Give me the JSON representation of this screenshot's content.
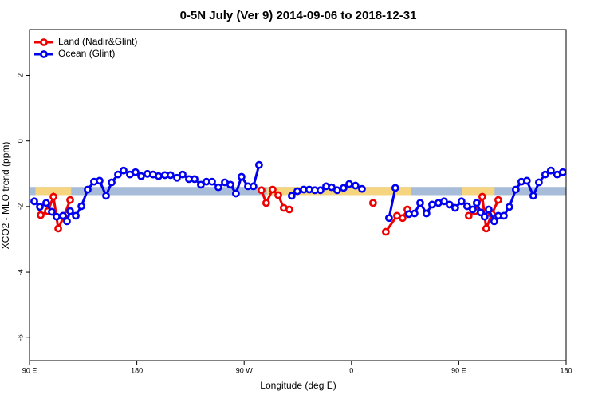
{
  "chart_data": {
    "type": "line",
    "title": "0-5N July (Ver 9)   2014-09-06 to 2018-12-31",
    "x_label": "Longitude (deg E)",
    "y_label": "XCO2 - MLO trend (ppm)",
    "xlim": [
      90,
      540
    ],
    "ylim": [
      -6.7,
      3.4
    ],
    "xticks": [
      {
        "value": 90,
        "label": "90 E"
      },
      180,
      {
        "value": 270,
        "label": "90 W"
      },
      {
        "value": 360,
        "label": "0"
      },
      {
        "value": 450,
        "label": "90 E"
      },
      {
        "value": 540,
        "label": "180"
      }
    ],
    "yticks": [
      2,
      0,
      -2,
      -4,
      -6
    ],
    "legend": "top-left",
    "reference_band": {
      "ylim": [
        -1.65,
        -1.4
      ],
      "color": "#a7bcd9",
      "highlight_color": "#f6d581",
      "highlight_ranges": [
        [
          95,
          125
        ],
        [
          289,
          410
        ],
        [
          453,
          480
        ]
      ]
    },
    "series": [
      {
        "name": "Land (Nadir&Glint)",
        "color": "#ee0000",
        "x": [
          99.4,
          105.4,
          110.1,
          114.1,
          118.7,
          124.1,
          null,
          284.5,
          288.5,
          293.9,
          298.6,
          303.2,
          307.9,
          null,
          378.1,
          null,
          388.8,
          398.2,
          402.9,
          406.9,
          null,
          458.3,
          463.7,
          469.7,
          473.0,
          477.7,
          483.1
        ],
        "values": [
          -2.26,
          -2.14,
          -1.7,
          -2.67,
          -2.31,
          -1.8,
          null,
          -1.5,
          -1.89,
          -1.48,
          -1.65,
          -2.04,
          -2.09,
          null,
          -1.89,
          null,
          -2.77,
          -2.28,
          -2.35,
          -2.09,
          null,
          -2.28,
          -2.14,
          -1.7,
          -2.67,
          -2.23,
          -1.8
        ]
      },
      {
        "name": "Ocean (Glint)",
        "color": "#0000ee",
        "x": [
          94.0,
          98.7,
          104.0,
          108.7,
          112.7,
          118.1,
          121.4,
          124.1,
          128.8,
          133.5,
          138.8,
          144.1,
          148.8,
          154.2,
          158.9,
          164.2,
          168.9,
          174.2,
          178.9,
          183.6,
          188.9,
          193.6,
          198.3,
          203.6,
          208.3,
          213.7,
          218.4,
          223.7,
          228.4,
          233.7,
          238.4,
          243.1,
          248.4,
          253.8,
          258.5,
          263.1,
          267.8,
          273.2,
          277.8,
          282.5,
          null,
          309.9,
          314.6,
          320.0,
          324.6,
          329.3,
          334.0,
          338.7,
          343.4,
          348.0,
          353.4,
          358.1,
          363.4,
          368.8,
          null,
          391.5,
          396.8,
          null,
          408.2,
          412.9,
          417.6,
          422.9,
          427.6,
          432.9,
          437.6,
          442.3,
          447.0,
          452.3,
          457.0,
          461.7,
          465.0,
          468.4,
          471.7,
          475.1,
          479.7,
          483.1,
          487.8,
          492.4,
          497.8,
          502.5,
          507.1,
          512.5,
          517.2,
          522.5,
          527.2,
          532.5,
          537.2
        ],
        "values": [
          -1.84,
          -2.01,
          -1.89,
          -2.16,
          -2.31,
          -2.28,
          -2.45,
          -2.14,
          -2.28,
          -1.99,
          -1.48,
          -1.24,
          -1.21,
          -1.67,
          -1.26,
          -1.02,
          -0.9,
          -1.02,
          -0.95,
          -1.07,
          -1.0,
          -1.02,
          -1.07,
          -1.04,
          -1.04,
          -1.12,
          -1.02,
          -1.16,
          -1.16,
          -1.33,
          -1.24,
          -1.24,
          -1.41,
          -1.26,
          -1.33,
          -1.6,
          -1.09,
          -1.38,
          -1.38,
          -0.73,
          null,
          -1.67,
          -1.53,
          -1.48,
          -1.48,
          -1.5,
          -1.5,
          -1.38,
          -1.41,
          -1.5,
          -1.43,
          -1.31,
          -1.36,
          -1.46,
          null,
          -2.35,
          -1.43,
          null,
          -2.23,
          -2.21,
          -1.89,
          -2.21,
          -1.94,
          -1.89,
          -1.84,
          -1.94,
          -2.04,
          -1.84,
          -1.99,
          -2.09,
          -1.89,
          -2.18,
          -2.31,
          -2.09,
          -2.45,
          -2.28,
          -2.28,
          -2.01,
          -1.48,
          -1.24,
          -1.21,
          -1.67,
          -1.26,
          -1.02,
          -0.9,
          -1.02,
          -0.95
        ]
      }
    ]
  }
}
